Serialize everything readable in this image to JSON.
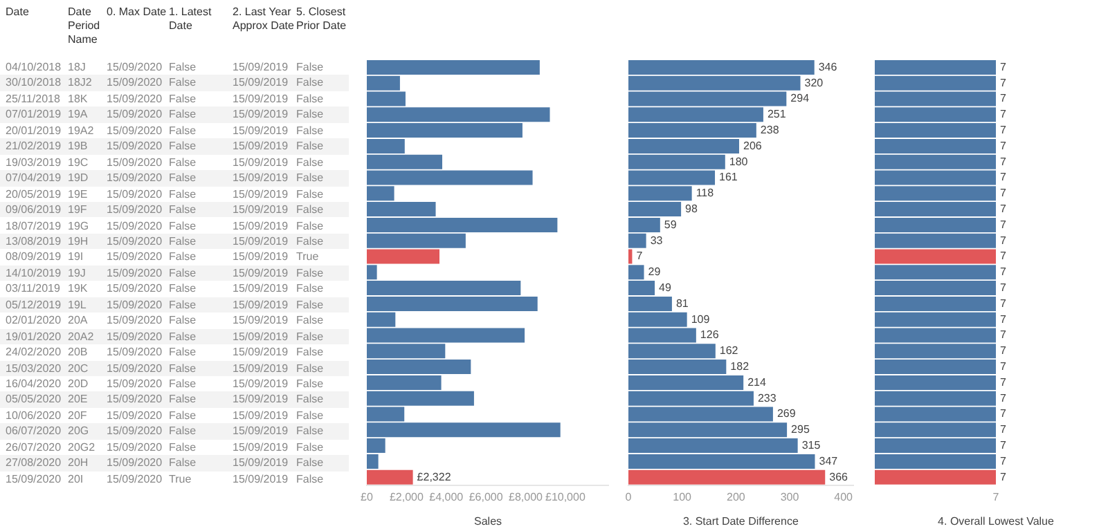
{
  "chart_data": [
    {
      "type": "other",
      "categories": [
        "Date",
        "Date Period Name",
        "0. Max Date",
        "1. Latest Date",
        "2. Last Year Approx Date",
        "5. Closest Prior Date"
      ],
      "cell_labels": [
        [
          "04/10/2018",
          "18J",
          "15/09/2020",
          "False",
          "15/09/2019",
          "False"
        ],
        [
          "30/10/2018",
          "18J2",
          "15/09/2020",
          "False",
          "15/09/2019",
          "False"
        ],
        [
          "25/11/2018",
          "18K",
          "15/09/2020",
          "False",
          "15/09/2019",
          "False"
        ],
        [
          "07/01/2019",
          "19A",
          "15/09/2020",
          "False",
          "15/09/2019",
          "False"
        ],
        [
          "20/01/2019",
          "19A2",
          "15/09/2020",
          "False",
          "15/09/2019",
          "False"
        ],
        [
          "21/02/2019",
          "19B",
          "15/09/2020",
          "False",
          "15/09/2019",
          "False"
        ],
        [
          "19/03/2019",
          "19C",
          "15/09/2020",
          "False",
          "15/09/2019",
          "False"
        ],
        [
          "07/04/2019",
          "19D",
          "15/09/2020",
          "False",
          "15/09/2019",
          "False"
        ],
        [
          "20/05/2019",
          "19E",
          "15/09/2020",
          "False",
          "15/09/2019",
          "False"
        ],
        [
          "09/06/2019",
          "19F",
          "15/09/2020",
          "False",
          "15/09/2019",
          "False"
        ],
        [
          "18/07/2019",
          "19G",
          "15/09/2020",
          "False",
          "15/09/2019",
          "False"
        ],
        [
          "13/08/2019",
          "19H",
          "15/09/2020",
          "False",
          "15/09/2019",
          "False"
        ],
        [
          "08/09/2019",
          "19I",
          "15/09/2020",
          "False",
          "15/09/2019",
          "True"
        ],
        [
          "14/10/2019",
          "19J",
          "15/09/2020",
          "False",
          "15/09/2019",
          "False"
        ],
        [
          "03/11/2019",
          "19K",
          "15/09/2020",
          "False",
          "15/09/2019",
          "False"
        ],
        [
          "05/12/2019",
          "19L",
          "15/09/2020",
          "False",
          "15/09/2019",
          "False"
        ],
        [
          "02/01/2020",
          "20A",
          "15/09/2020",
          "False",
          "15/09/2019",
          "False"
        ],
        [
          "19/01/2020",
          "20A2",
          "15/09/2020",
          "False",
          "15/09/2019",
          "False"
        ],
        [
          "24/02/2020",
          "20B",
          "15/09/2020",
          "False",
          "15/09/2019",
          "False"
        ],
        [
          "15/03/2020",
          "20C",
          "15/09/2020",
          "False",
          "15/09/2019",
          "False"
        ],
        [
          "16/04/2020",
          "20D",
          "15/09/2020",
          "False",
          "15/09/2019",
          "False"
        ],
        [
          "05/05/2020",
          "20E",
          "15/09/2020",
          "False",
          "15/09/2019",
          "False"
        ],
        [
          "10/06/2020",
          "20F",
          "15/09/2020",
          "False",
          "15/09/2019",
          "False"
        ],
        [
          "06/07/2020",
          "20G",
          "15/09/2020",
          "False",
          "15/09/2019",
          "False"
        ],
        [
          "26/07/2020",
          "20G2",
          "15/09/2020",
          "False",
          "15/09/2019",
          "False"
        ],
        [
          "27/08/2020",
          "20H",
          "15/09/2020",
          "False",
          "15/09/2019",
          "False"
        ],
        [
          "15/09/2020",
          "20I",
          "15/09/2020",
          "True",
          "15/09/2019",
          "False"
        ]
      ]
    },
    {
      "type": "bar",
      "orientation": "horizontal",
      "xlabel": "Sales",
      "tick_labels": "x",
      "categories": [
        null,
        null,
        null,
        null,
        null,
        null,
        null,
        null,
        null,
        null,
        null,
        null,
        null,
        null,
        null,
        null,
        null,
        null,
        null,
        null,
        null,
        null,
        null,
        null,
        null,
        null,
        null
      ],
      "values": [
        8710,
        1670,
        1950,
        9220,
        7840,
        1910,
        3800,
        8350,
        1380,
        3470,
        9600,
        4980,
        3660,
        510,
        7750,
        8600,
        1440,
        7950,
        3950,
        5240,
        3750,
        5400,
        1890,
        9750,
        930,
        580,
        2322
      ],
      "value_labels": [
        null,
        null,
        null,
        null,
        null,
        null,
        null,
        null,
        null,
        null,
        null,
        null,
        null,
        null,
        null,
        null,
        null,
        null,
        null,
        null,
        null,
        null,
        null,
        null,
        null,
        null,
        "£2,322"
      ],
      "colors": [
        "#4e79a7",
        "#4e79a7",
        "#4e79a7",
        "#4e79a7",
        "#4e79a7",
        "#4e79a7",
        "#4e79a7",
        "#4e79a7",
        "#4e79a7",
        "#4e79a7",
        "#4e79a7",
        "#4e79a7",
        "#e15759",
        "#4e79a7",
        "#4e79a7",
        "#4e79a7",
        "#4e79a7",
        "#4e79a7",
        "#4e79a7",
        "#4e79a7",
        "#4e79a7",
        "#4e79a7",
        "#4e79a7",
        "#4e79a7",
        "#4e79a7",
        "#4e79a7",
        "#e15759"
      ],
      "xlim": [
        0,
        12200
      ],
      "xticks": [
        {
          "value": 0,
          "label": "£0"
        },
        {
          "value": 2000,
          "label": "£2,000"
        },
        {
          "value": 4000,
          "label": "£4,000"
        },
        {
          "value": 6000,
          "label": "£6,000"
        },
        {
          "value": 8000,
          "label": "£8,000"
        },
        {
          "value": 10000,
          "label": "£10,000"
        }
      ]
    },
    {
      "type": "bar",
      "orientation": "horizontal",
      "xlabel": "3. Start Date Difference",
      "tick_labels": "x",
      "data_labels": true,
      "categories": [
        null,
        null,
        null,
        null,
        null,
        null,
        null,
        null,
        null,
        null,
        null,
        null,
        null,
        null,
        null,
        null,
        null,
        null,
        null,
        null,
        null,
        null,
        null,
        null,
        null,
        null,
        null
      ],
      "values": [
        346,
        320,
        294,
        251,
        238,
        206,
        180,
        161,
        118,
        98,
        59,
        33,
        7,
        29,
        49,
        81,
        109,
        126,
        162,
        182,
        214,
        233,
        269,
        295,
        315,
        347,
        366
      ],
      "colors": [
        "#4e79a7",
        "#4e79a7",
        "#4e79a7",
        "#4e79a7",
        "#4e79a7",
        "#4e79a7",
        "#4e79a7",
        "#4e79a7",
        "#4e79a7",
        "#4e79a7",
        "#4e79a7",
        "#4e79a7",
        "#e15759",
        "#4e79a7",
        "#4e79a7",
        "#4e79a7",
        "#4e79a7",
        "#4e79a7",
        "#4e79a7",
        "#4e79a7",
        "#4e79a7",
        "#4e79a7",
        "#4e79a7",
        "#4e79a7",
        "#4e79a7",
        "#4e79a7",
        "#e15759"
      ],
      "xlim": [
        0,
        418
      ],
      "xticks": [
        0,
        100,
        200,
        300,
        400
      ]
    },
    {
      "type": "bar",
      "orientation": "horizontal",
      "xlabel": "4. Overall Lowest Value",
      "tick_labels": "x",
      "data_labels": true,
      "annotations": [
        "7"
      ],
      "categories": [
        null,
        null,
        null,
        null,
        null,
        null,
        null,
        null,
        null,
        null,
        null,
        null,
        null,
        null,
        null,
        null,
        null,
        null,
        null,
        null,
        null,
        null,
        null,
        null,
        null,
        null,
        null
      ],
      "values": [
        7,
        7,
        7,
        7,
        7,
        7,
        7,
        7,
        7,
        7,
        7,
        7,
        7,
        7,
        7,
        7,
        7,
        7,
        7,
        7,
        7,
        7,
        7,
        7,
        7,
        7,
        7
      ],
      "colors": [
        "#4e79a7",
        "#4e79a7",
        "#4e79a7",
        "#4e79a7",
        "#4e79a7",
        "#4e79a7",
        "#4e79a7",
        "#4e79a7",
        "#4e79a7",
        "#4e79a7",
        "#4e79a7",
        "#4e79a7",
        "#e15759",
        "#4e79a7",
        "#4e79a7",
        "#4e79a7",
        "#4e79a7",
        "#4e79a7",
        "#4e79a7",
        "#4e79a7",
        "#4e79a7",
        "#4e79a7",
        "#4e79a7",
        "#4e79a7",
        "#4e79a7",
        "#4e79a7",
        "#e15759"
      ]
    }
  ]
}
